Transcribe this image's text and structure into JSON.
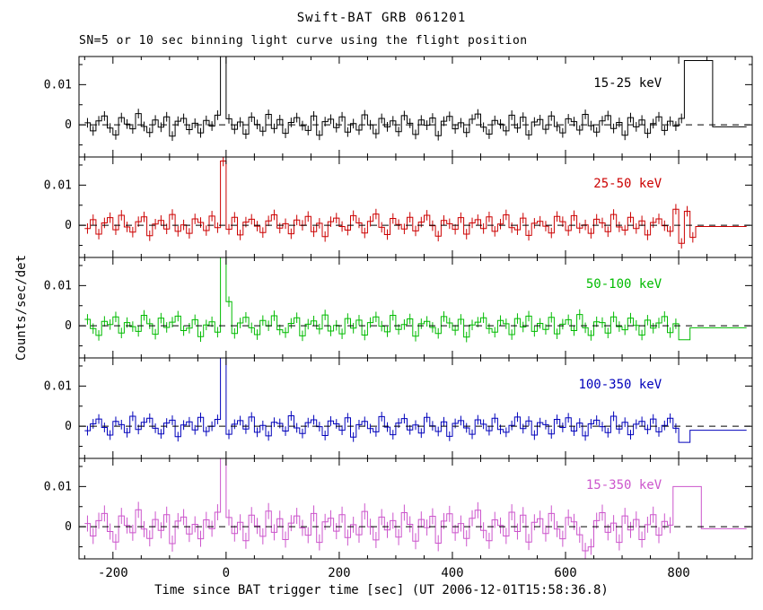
{
  "figure": {
    "title": "Swift-BAT GRB 061201",
    "subtitle": "SN=5 or 10 sec binning light curve using the flight position",
    "xlabel": "Time since BAT trigger time [sec] (UT 2006-12-01T15:58:36.8)",
    "ylabel": "Counts/sec/det"
  },
  "chart_data": {
    "type": "line",
    "title": "Swift-BAT GRB 061201",
    "subtitle": "SN=5 or 10 sec binning light curve using the flight position",
    "xlabel": "Time since BAT trigger time [sec] (UT 2006-12-01T15:58:36.8)",
    "ylabel": "Counts/sec/det",
    "xlim": [
      -260,
      930
    ],
    "ylim": [
      -0.008,
      0.017
    ],
    "x_major_ticks": [
      -200,
      0,
      200,
      400,
      600,
      800
    ],
    "x_minor_step": 50,
    "y_major_ticks": [
      0,
      0.01
    ],
    "y_tick_labels": [
      "0",
      "0.01"
    ],
    "y_minor_ticks": [
      -0.005,
      0.005,
      0.015
    ],
    "grid": false,
    "legend_position": "in-panel-top-right",
    "zero_line": {
      "y": 0,
      "style": "dashed",
      "color": "#000000"
    },
    "bin_start": -245,
    "bin_step": 10,
    "y_scale": 0.001,
    "panels": [
      {
        "band": "15-25 keV",
        "color": "#000000",
        "err": 1.2,
        "tail_start": 106,
        "values_milli": [
          0.5,
          -1.5,
          1.0,
          2.2,
          -0.8,
          -2.5,
          1.8,
          0.2,
          -1.0,
          2.8,
          -0.4,
          -1.9,
          1.2,
          -0.6,
          2.0,
          -2.8,
          0.9,
          1.6,
          -1.2,
          0.4,
          -2.0,
          1.1,
          -0.3,
          2.4,
          30,
          1.5,
          -1.1,
          0.7,
          -2.3,
          1.9,
          0.1,
          -1.6,
          2.6,
          -0.9,
          1.3,
          -2.1,
          0.6,
          1.8,
          -0.2,
          -1.4,
          2.2,
          -2.6,
          0.8,
          1.4,
          -0.7,
          2.0,
          -1.8,
          0.3,
          -1.3,
          2.5,
          0.0,
          -2.2,
          1.6,
          -0.5,
          1.0,
          -1.7,
          2.3,
          0.4,
          -2.4,
          1.2,
          -0.1,
          1.7,
          -2.7,
          0.9,
          2.1,
          -1.0,
          0.5,
          -1.9,
          1.4,
          2.7,
          -0.6,
          -2.3,
          1.1,
          0.2,
          -1.5,
          2.4,
          -0.8,
          1.9,
          -2.5,
          0.7,
          1.3,
          -1.1,
          2.2,
          -0.4,
          -2.0,
          1.5,
          0.8,
          -1.3,
          2.6,
          -0.2,
          -1.8,
          1.0,
          2.3,
          -0.9,
          0.6,
          -2.6,
          1.8,
          -0.5,
          1.2,
          -2.1,
          0.3,
          2.0,
          -1.4,
          0.9,
          -0.3,
          1.6,
          16,
          16,
          16,
          16,
          16,
          -0.5,
          -0.5,
          -0.5,
          -0.5,
          -0.5,
          -0.5
        ]
      },
      {
        "band": "25-50 keV",
        "color": "#cc0000",
        "err": 1.3,
        "tail_start": 108,
        "values_milli": [
          -0.8,
          1.4,
          -2.2,
          0.6,
          1.9,
          -1.1,
          2.5,
          -0.4,
          -1.7,
          0.9,
          2.1,
          -2.6,
          0.3,
          1.2,
          -0.9,
          2.7,
          -1.5,
          0.1,
          -2.0,
          1.6,
          0.7,
          -1.3,
          2.3,
          -0.6,
          16,
          -1.0,
          2.0,
          -2.4,
          0.8,
          1.5,
          -0.2,
          -1.8,
          1.1,
          2.6,
          -0.7,
          0.4,
          -2.1,
          1.3,
          0.0,
          2.2,
          -1.6,
          0.5,
          -2.8,
          0.9,
          1.8,
          -0.3,
          -1.2,
          2.4,
          0.6,
          -1.9,
          1.0,
          2.8,
          -0.5,
          -2.3,
          1.7,
          0.2,
          -0.9,
          2.0,
          -1.4,
          0.8,
          2.5,
          -0.1,
          -2.7,
          1.2,
          0.4,
          -1.0,
          1.9,
          -2.2,
          0.6,
          1.4,
          -0.8,
          2.1,
          -1.5,
          0.3,
          2.6,
          -0.6,
          -1.1,
          1.8,
          -2.5,
          0.5,
          1.0,
          -0.2,
          -1.9,
          2.2,
          0.9,
          -1.3,
          2.4,
          -0.7,
          0.1,
          -2.0,
          1.5,
          0.6,
          -1.6,
          2.7,
          -0.4,
          -1.2,
          2.0,
          -0.8,
          1.1,
          -2.4,
          0.7,
          1.6,
          -0.1,
          -1.5,
          4.0,
          -4.5,
          3.5,
          -3.0,
          -0.3,
          -0.3,
          -0.3,
          -0.3,
          -0.3,
          -0.3,
          -0.3,
          -0.3,
          -0.3
        ]
      },
      {
        "band": "50-100 keV",
        "color": "#00bb00",
        "err": 1.3,
        "tail_start": 105,
        "values_milli": [
          1.6,
          -0.7,
          -2.4,
          1.1,
          0.3,
          2.2,
          -1.8,
          0.8,
          -0.2,
          -1.4,
          2.6,
          0.5,
          -2.1,
          1.9,
          -0.4,
          0.9,
          2.4,
          -1.2,
          -0.6,
          1.5,
          -2.7,
          0.2,
          1.0,
          -1.6,
          18.5,
          6.0,
          -1.9,
          0.7,
          2.1,
          -0.5,
          -2.2,
          1.3,
          0.0,
          2.5,
          -1.0,
          -1.7,
          0.6,
          2.0,
          -2.5,
          0.4,
          1.2,
          -0.8,
          2.7,
          -1.3,
          0.1,
          -2.0,
          1.8,
          -0.6,
          1.4,
          -2.3,
          0.8,
          2.2,
          -0.1,
          -1.5,
          2.6,
          -0.9,
          0.3,
          1.7,
          -2.6,
          0.5,
          1.1,
          -0.4,
          -1.9,
          2.3,
          0.7,
          -1.1,
          1.6,
          -2.8,
          0.2,
          0.9,
          2.0,
          -0.7,
          -1.6,
          1.3,
          0.5,
          -2.2,
          1.8,
          -0.3,
          2.4,
          -1.4,
          0.6,
          -0.9,
          2.1,
          -2.0,
          0.4,
          1.5,
          -1.2,
          2.8,
          -0.5,
          -2.4,
          1.0,
          0.8,
          -1.8,
          2.2,
          -0.2,
          -1.0,
          1.9,
          0.1,
          -2.3,
          1.4,
          -0.6,
          0.7,
          2.3,
          -1.7,
          0.5,
          -3.5,
          -3.5,
          -0.5,
          -0.5,
          -0.5,
          -0.5,
          -0.5,
          -0.5,
          -0.5,
          -0.5,
          -0.5,
          -0.5
        ]
      },
      {
        "band": "100-350 keV",
        "color": "#0000bb",
        "err": 1.2,
        "tail_start": 105,
        "values_milli": [
          -1.1,
          0.6,
          1.8,
          -0.3,
          -2.2,
          1.2,
          0.4,
          -1.6,
          2.5,
          -0.8,
          1.0,
          2.0,
          -0.5,
          -1.9,
          0.8,
          1.5,
          -2.6,
          0.3,
          1.1,
          -0.9,
          2.2,
          -1.3,
          0.0,
          1.7,
          30,
          -2.0,
          0.5,
          1.4,
          -0.7,
          2.3,
          -1.5,
          0.2,
          -2.4,
          1.0,
          0.7,
          -1.2,
          2.6,
          -0.4,
          -1.8,
          0.9,
          1.6,
          -0.1,
          -2.3,
          1.3,
          0.6,
          -1.0,
          2.1,
          -2.7,
          0.4,
          1.2,
          -0.6,
          -1.4,
          2.4,
          -0.2,
          -2.1,
          0.8,
          1.9,
          -0.9,
          0.3,
          -1.7,
          2.2,
          0.1,
          -1.3,
          1.1,
          -2.5,
          0.7,
          1.4,
          -0.4,
          -2.0,
          1.6,
          0.5,
          -1.1,
          2.0,
          -0.8,
          -1.5,
          0.2,
          2.3,
          -0.6,
          1.3,
          -2.2,
          0.9,
          0.4,
          -1.9,
          1.7,
          -0.3,
          2.1,
          -1.2,
          0.8,
          -2.4,
          0.6,
          1.5,
          -0.1,
          -1.6,
          2.5,
          -0.7,
          1.0,
          -2.1,
          0.5,
          1.2,
          -0.8,
          1.8,
          -1.4,
          0.2,
          2.0,
          -0.5,
          -4.0,
          -4.0,
          -1.0,
          -1.0,
          -1.0,
          -1.0,
          -1.0,
          -1.0,
          -1.0,
          -1.0,
          -1.0,
          -1.0
        ]
      },
      {
        "band": "15-350 keV",
        "color": "#cc55cc",
        "err": 2.0,
        "tail_start": 104,
        "values_milli": [
          0.8,
          -2.3,
          1.5,
          3.3,
          -1.2,
          -3.8,
          2.7,
          0.3,
          -1.5,
          4.2,
          -0.6,
          -2.9,
          1.8,
          -0.9,
          3.0,
          -4.2,
          1.4,
          2.4,
          -1.8,
          0.6,
          -3.0,
          1.7,
          -0.5,
          3.6,
          30,
          2.3,
          -1.7,
          1.1,
          -3.5,
          2.9,
          0.2,
          -2.4,
          3.9,
          -1.4,
          2.0,
          -3.2,
          0.9,
          2.7,
          -0.3,
          -2.1,
          3.3,
          -3.9,
          1.2,
          2.1,
          -1.1,
          3.0,
          -2.7,
          0.5,
          -2.0,
          3.8,
          0.0,
          -3.3,
          2.4,
          -0.8,
          1.5,
          -2.6,
          3.5,
          0.6,
          -3.6,
          1.8,
          -0.2,
          2.6,
          -4.1,
          1.4,
          3.2,
          -1.5,
          0.8,
          -2.9,
          2.1,
          4.1,
          -0.9,
          -3.5,
          1.7,
          0.3,
          -2.3,
          3.6,
          -1.2,
          2.9,
          -3.8,
          1.1,
          2.0,
          -1.7,
          3.3,
          -0.6,
          -3.0,
          2.3,
          1.2,
          -2.0,
          -6.0,
          -5.0,
          1.5,
          3.5,
          -1.4,
          0.9,
          -3.9,
          2.7,
          -0.8,
          1.8,
          -3.2,
          0.5,
          3.0,
          -2.1,
          1.3,
          0.4,
          10,
          10,
          10,
          10,
          10,
          -0.5,
          -0.5,
          -0.5,
          -0.5,
          -0.5,
          -0.5,
          -0.5,
          -0.5
        ]
      }
    ]
  }
}
